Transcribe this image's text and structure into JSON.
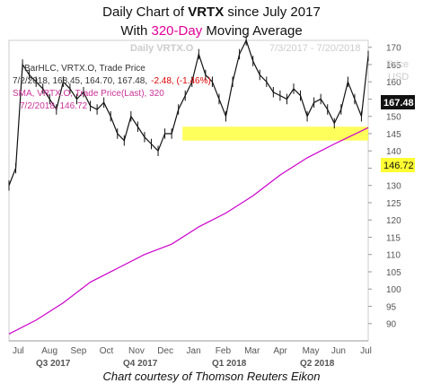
{
  "title": {
    "line1_prefix": "Daily Chart of ",
    "line1_ticker": "VRTX",
    "line1_suffix": " since July 2017",
    "line2_prefix": "With ",
    "line2_accent": "320-Day",
    "line2_suffix": " Moving Average"
  },
  "footer": "Chart courtesy of Thomson Reuters Eikon",
  "colors": {
    "price": "#111111",
    "sma": "#cc00cc",
    "band": "#ffff33",
    "accent": "#e0009a",
    "legend_text": "#333333",
    "legend_highlight": "#cc3399",
    "change_negative": "#e00000",
    "watermark": "#cccccc"
  },
  "chart_data": {
    "type": "line",
    "watermark": "Daily VRTX.O",
    "date_range": "7/3/2017 - 7/20/2018",
    "y_axis_title": "Price",
    "y_axis_unit": "USD",
    "ylim": [
      85,
      172
    ],
    "y_ticks": [
      90,
      95,
      100,
      105,
      110,
      115,
      120,
      125,
      130,
      135,
      140,
      145,
      150,
      155,
      160,
      165,
      170
    ],
    "months": [
      "Jul",
      "Aug",
      "Sep",
      "Oct",
      "Nov",
      "Dec",
      "Jan",
      "Feb",
      "Mar",
      "Apr",
      "May",
      "Jun",
      "Jul"
    ],
    "quarters": [
      "Q3 2017",
      "Q4 2017",
      "Q1 2018",
      "Q2 2018"
    ],
    "legend": {
      "price_label": "BarHLC, VRTX.O, Trade Price",
      "price_values": "7/2/2018, 168.45, 164.70, 167.48,",
      "price_change": "-2.48, (-1.46%)",
      "sma_label": "SMA, VRTX.O, Trade Price(Last), 320",
      "sma_values": "7/2/2018, 146.72"
    },
    "last_price_label": "167.48",
    "sma_last_label": "146.72",
    "support_band": [
      143,
      147
    ],
    "series": [
      {
        "name": "BarHLC, VRTX.O, Trade Price",
        "x": [
          0,
          5,
          10,
          15,
          20,
          25,
          30,
          35,
          40,
          45,
          50,
          55,
          60,
          65,
          70,
          75,
          80,
          85,
          90,
          95,
          100,
          105,
          110,
          115,
          120,
          125,
          130,
          135,
          140,
          145,
          150,
          155,
          160,
          165,
          170,
          175,
          180,
          185,
          190,
          195,
          200,
          205,
          210,
          215,
          220,
          225,
          230,
          235,
          240,
          245,
          250,
          255,
          260,
          265
        ],
        "y": [
          130,
          135,
          165,
          162,
          160,
          158,
          155,
          152,
          160,
          158,
          155,
          157,
          153,
          152,
          154,
          150,
          145,
          143,
          150,
          147,
          144,
          142,
          140,
          145,
          145,
          152,
          156,
          160,
          168,
          162,
          160,
          155,
          150,
          160,
          168,
          172,
          166,
          162,
          160,
          157,
          156,
          155,
          158,
          156,
          150,
          154,
          155,
          152,
          148,
          152,
          160,
          155,
          150,
          167.48
        ]
      },
      {
        "name": "SMA, VRTX.O, Trade Price(Last), 320",
        "x": [
          0,
          20,
          40,
          60,
          80,
          100,
          120,
          140,
          160,
          180,
          200,
          220,
          240,
          265
        ],
        "y": [
          87,
          91,
          96,
          102,
          106,
          110,
          113,
          118,
          122,
          127,
          133,
          138,
          142,
          146.72
        ]
      }
    ]
  }
}
